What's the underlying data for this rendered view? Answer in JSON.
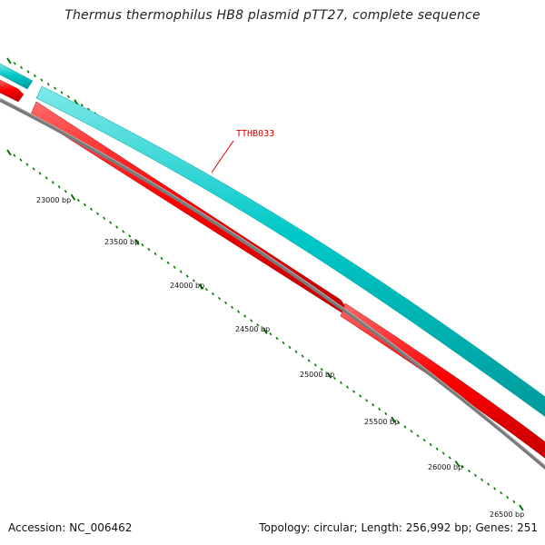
{
  "map": {
    "title": "Thermus thermophilus HB8 plasmid pTT27, complete sequence",
    "accession": "Accession: NC_006462",
    "topology": "Topology: circular; Length: 256,992 bp; Genes: 251",
    "gene_labels": [
      "TTHB033"
    ],
    "position_labels": [
      "23000 bp",
      "23500 bp",
      "24000 bp",
      "24500 bp",
      "25000 bp",
      "25500 bp",
      "26000 bp",
      "26500 bp"
    ],
    "colors": {
      "forward_strand_genes": "#00c8c8",
      "reverse_strand_genes": "#ff0000",
      "backbone": "#808080",
      "ticks": "#007700",
      "gene_label": "#e00000"
    }
  }
}
